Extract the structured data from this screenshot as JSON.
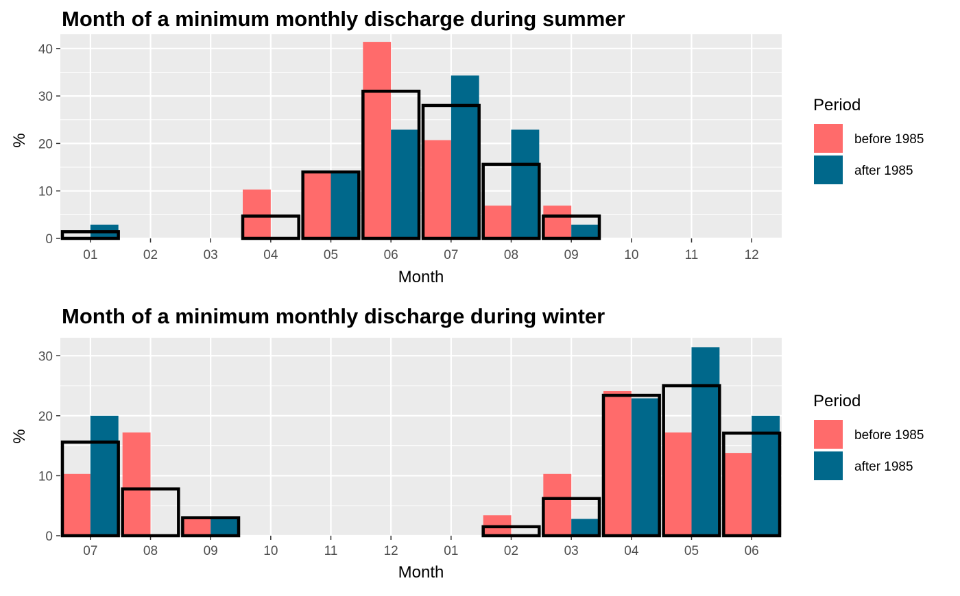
{
  "colors": {
    "before": "#FF6B6B",
    "after": "#00688B",
    "panel_bg": "#EBEBEB",
    "grid": "#FFFFFF",
    "outline": "#000000"
  },
  "chart_data": [
    {
      "type": "bar",
      "title": "Month of a minimum monthly discharge during summer",
      "xlabel": "Month",
      "ylabel": "%",
      "categories": [
        "01",
        "02",
        "03",
        "04",
        "05",
        "06",
        "07",
        "08",
        "09",
        "10",
        "11",
        "12"
      ],
      "ylim": [
        0,
        43
      ],
      "yticks": [
        0,
        10,
        20,
        30,
        40
      ],
      "grid": true,
      "legend": {
        "title": "Period",
        "position": "right",
        "entries": [
          "before 1985",
          "after 1985"
        ]
      },
      "series": [
        {
          "name": "before 1985",
          "values": [
            0,
            0,
            0,
            10.3,
            13.8,
            41.4,
            20.7,
            6.9,
            6.9,
            0,
            0,
            0
          ]
        },
        {
          "name": "after 1985",
          "values": [
            2.9,
            0,
            0,
            0,
            13.8,
            22.9,
            34.3,
            22.9,
            2.9,
            0,
            0,
            0
          ]
        }
      ],
      "overall": [
        1.4,
        0,
        0,
        4.7,
        14.0,
        31.0,
        28.0,
        15.6,
        4.7,
        0,
        0,
        0
      ]
    },
    {
      "type": "bar",
      "title": "Month of a minimum monthly discharge during winter",
      "xlabel": "Month",
      "ylabel": "%",
      "categories": [
        "07",
        "08",
        "09",
        "10",
        "11",
        "12",
        "01",
        "02",
        "03",
        "04",
        "05",
        "06"
      ],
      "ylim": [
        0,
        33
      ],
      "yticks": [
        0,
        10,
        20,
        30
      ],
      "grid": true,
      "legend": {
        "title": "Period",
        "position": "right",
        "entries": [
          "before 1985",
          "after 1985"
        ]
      },
      "series": [
        {
          "name": "before 1985",
          "values": [
            10.3,
            17.2,
            2.8,
            0,
            0,
            0,
            0,
            3.4,
            10.3,
            24.1,
            17.2,
            13.8
          ]
        },
        {
          "name": "after 1985",
          "values": [
            20.0,
            0,
            2.8,
            0,
            0,
            0,
            0,
            0,
            2.8,
            22.9,
            31.4,
            20.0
          ]
        }
      ],
      "overall": [
        15.6,
        7.8,
        3.0,
        0,
        0,
        0,
        0,
        1.5,
        6.2,
        23.4,
        25.0,
        17.1
      ]
    }
  ]
}
